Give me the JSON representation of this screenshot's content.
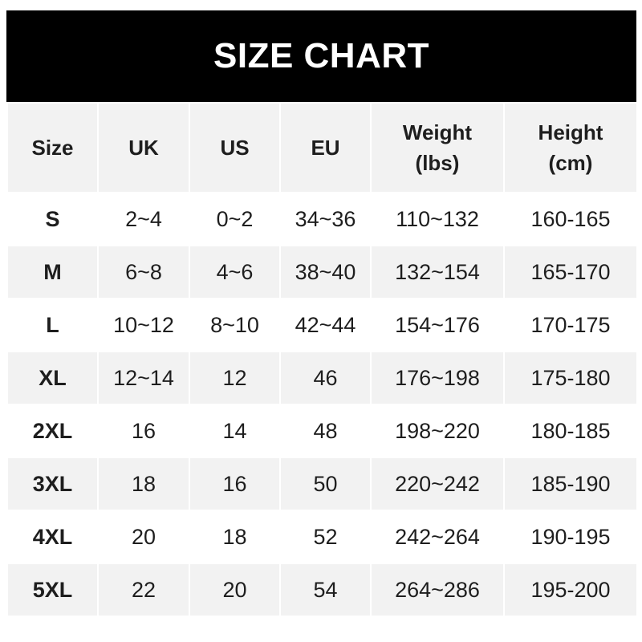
{
  "title": "SIZE CHART",
  "headers": [
    {
      "line1": "Size",
      "line2": ""
    },
    {
      "line1": "UK",
      "line2": ""
    },
    {
      "line1": "US",
      "line2": ""
    },
    {
      "line1": "EU",
      "line2": ""
    },
    {
      "line1": "Weight",
      "line2": "(lbs)"
    },
    {
      "line1": "Height",
      "line2": "(cm)"
    }
  ],
  "rows": [
    [
      "S",
      "2~4",
      "0~2",
      "34~36",
      "110~132",
      "160-165"
    ],
    [
      "M",
      "6~8",
      "4~6",
      "38~40",
      "132~154",
      "165-170"
    ],
    [
      "L",
      "10~12",
      "8~10",
      "42~44",
      "154~176",
      "170-175"
    ],
    [
      "XL",
      "12~14",
      "12",
      "46",
      "176~198",
      "175-180"
    ],
    [
      "2XL",
      "16",
      "14",
      "48",
      "198~220",
      "180-185"
    ],
    [
      "3XL",
      "18",
      "16",
      "50",
      "220~242",
      "185-190"
    ],
    [
      "4XL",
      "20",
      "18",
      "52",
      "242~264",
      "190-195"
    ],
    [
      "5XL",
      "22",
      "20",
      "54",
      "264~286",
      "195-200"
    ]
  ],
  "colors": {
    "banner": "#000000",
    "row_alt": "#f2f2f2",
    "text": "#1e1e1e"
  }
}
